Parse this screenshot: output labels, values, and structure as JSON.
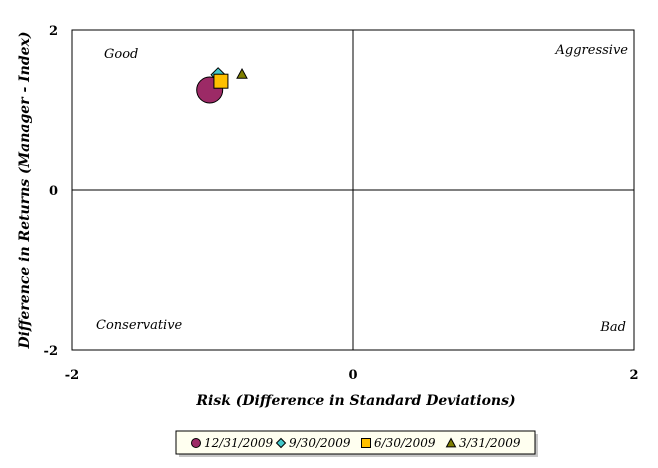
{
  "chart_data": {
    "type": "scatter",
    "xlabel": "Risk (Difference in Standard Deviations)",
    "ylabel": "Difference in Returns (Manager - Index)",
    "xlim": [
      -2,
      2
    ],
    "ylim": [
      -2,
      2
    ],
    "x_ticks": [
      "-2",
      "0",
      "2"
    ],
    "y_ticks": [
      "-2",
      "0",
      "2"
    ],
    "grid": false,
    "quadrant_lines_at_zero": true,
    "legend_position": "bottom-center",
    "quadrant_labels": {
      "top_left": "Good",
      "top_right": "Aggressive",
      "bottom_left": "Conservative",
      "bottom_right": "Bad"
    },
    "series": [
      {
        "name": "12/31/2009",
        "marker": "circle",
        "color": "#9c2a66",
        "marker_size": "large",
        "x": -1.02,
        "y": 1.25
      },
      {
        "name": "9/30/2009",
        "marker": "diamond",
        "color": "#43c7c9",
        "marker_size": "medium",
        "x": -0.96,
        "y": 1.44
      },
      {
        "name": "6/30/2009",
        "marker": "square",
        "color": "#ffc000",
        "marker_size": "medium",
        "x": -0.94,
        "y": 1.36
      },
      {
        "name": "3/31/2009",
        "marker": "triangle",
        "color": "#7f7f00",
        "marker_size": "small",
        "x": -0.79,
        "y": 1.45
      }
    ]
  }
}
